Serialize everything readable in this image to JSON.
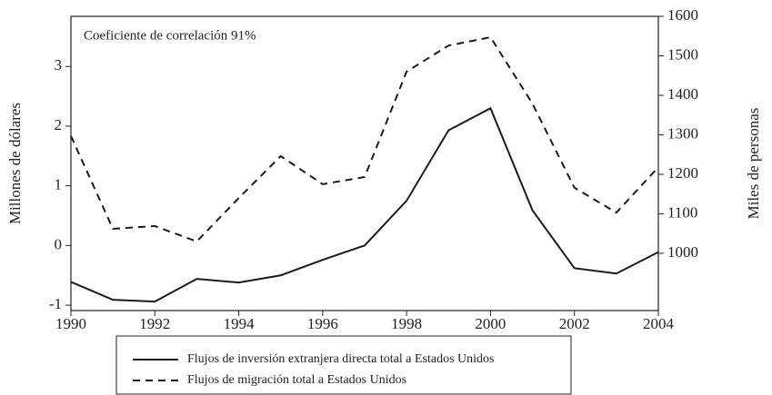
{
  "chart_data": {
    "type": "line",
    "annotation": "Coeficiente de correlación 91%",
    "ylabel": "Millones de dólares",
    "y2label": "Miles de personas",
    "x": [
      1990,
      1991,
      1992,
      1993,
      1994,
      1995,
      1996,
      1997,
      1998,
      1999,
      2000,
      2001,
      2002,
      2003,
      2004
    ],
    "xlim": [
      1990,
      2004
    ],
    "xticks": [
      1990,
      1992,
      1994,
      1996,
      1998,
      2000,
      2002,
      2004
    ],
    "ylim": [
      -1.09,
      3.84
    ],
    "yticks": [
      -1,
      0,
      1,
      2,
      3
    ],
    "y2lim": [
      855,
      1600
    ],
    "y2ticks": [
      1000,
      1100,
      1200,
      1300,
      1400,
      1500,
      1600
    ],
    "series": [
      {
        "name": "Flujos de inversión extranjera directa total a Estados Unidos",
        "color": "#1a1a1a",
        "dash": "solid",
        "values": [
          -0.61,
          -0.91,
          -0.94,
          -0.56,
          -0.62,
          -0.5,
          -0.24,
          0,
          0.75,
          1.93,
          2.3,
          0.59,
          -0.38,
          -0.47,
          -0.11
        ]
      },
      {
        "name": "Flujos de migración total a Estados Unidos",
        "color": "#1a1a1a",
        "dash": "dashed",
        "axis": "y2",
        "values": [
          1297,
          1062,
          1069,
          1030,
          1140,
          1246,
          1175,
          1193,
          1460,
          1526,
          1547,
          1379,
          1166,
          1103,
          1218
        ]
      }
    ]
  }
}
